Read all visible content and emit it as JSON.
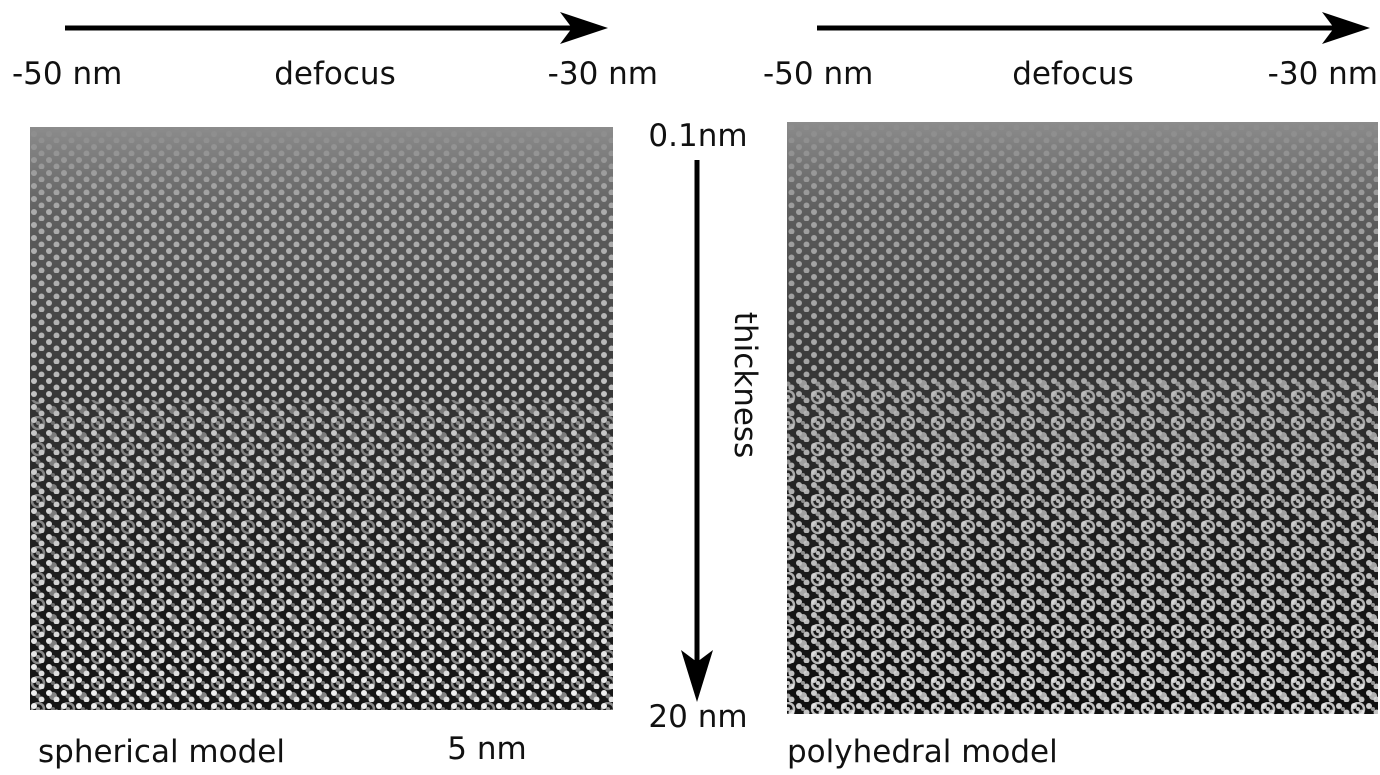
{
  "panels": [
    {
      "defocus_axis": {
        "start": "-50 nm",
        "label": "defocus",
        "end": "-30 nm"
      },
      "caption": "spherical model",
      "scale_label": "5 nm"
    },
    {
      "defocus_axis": {
        "start": "-50 nm",
        "label": "defocus",
        "end": "-30 nm"
      },
      "caption": "polyhedral model"
    }
  ],
  "thickness_axis": {
    "top": "0.1nm",
    "label": "thickness",
    "bottom": "20 nm"
  }
}
